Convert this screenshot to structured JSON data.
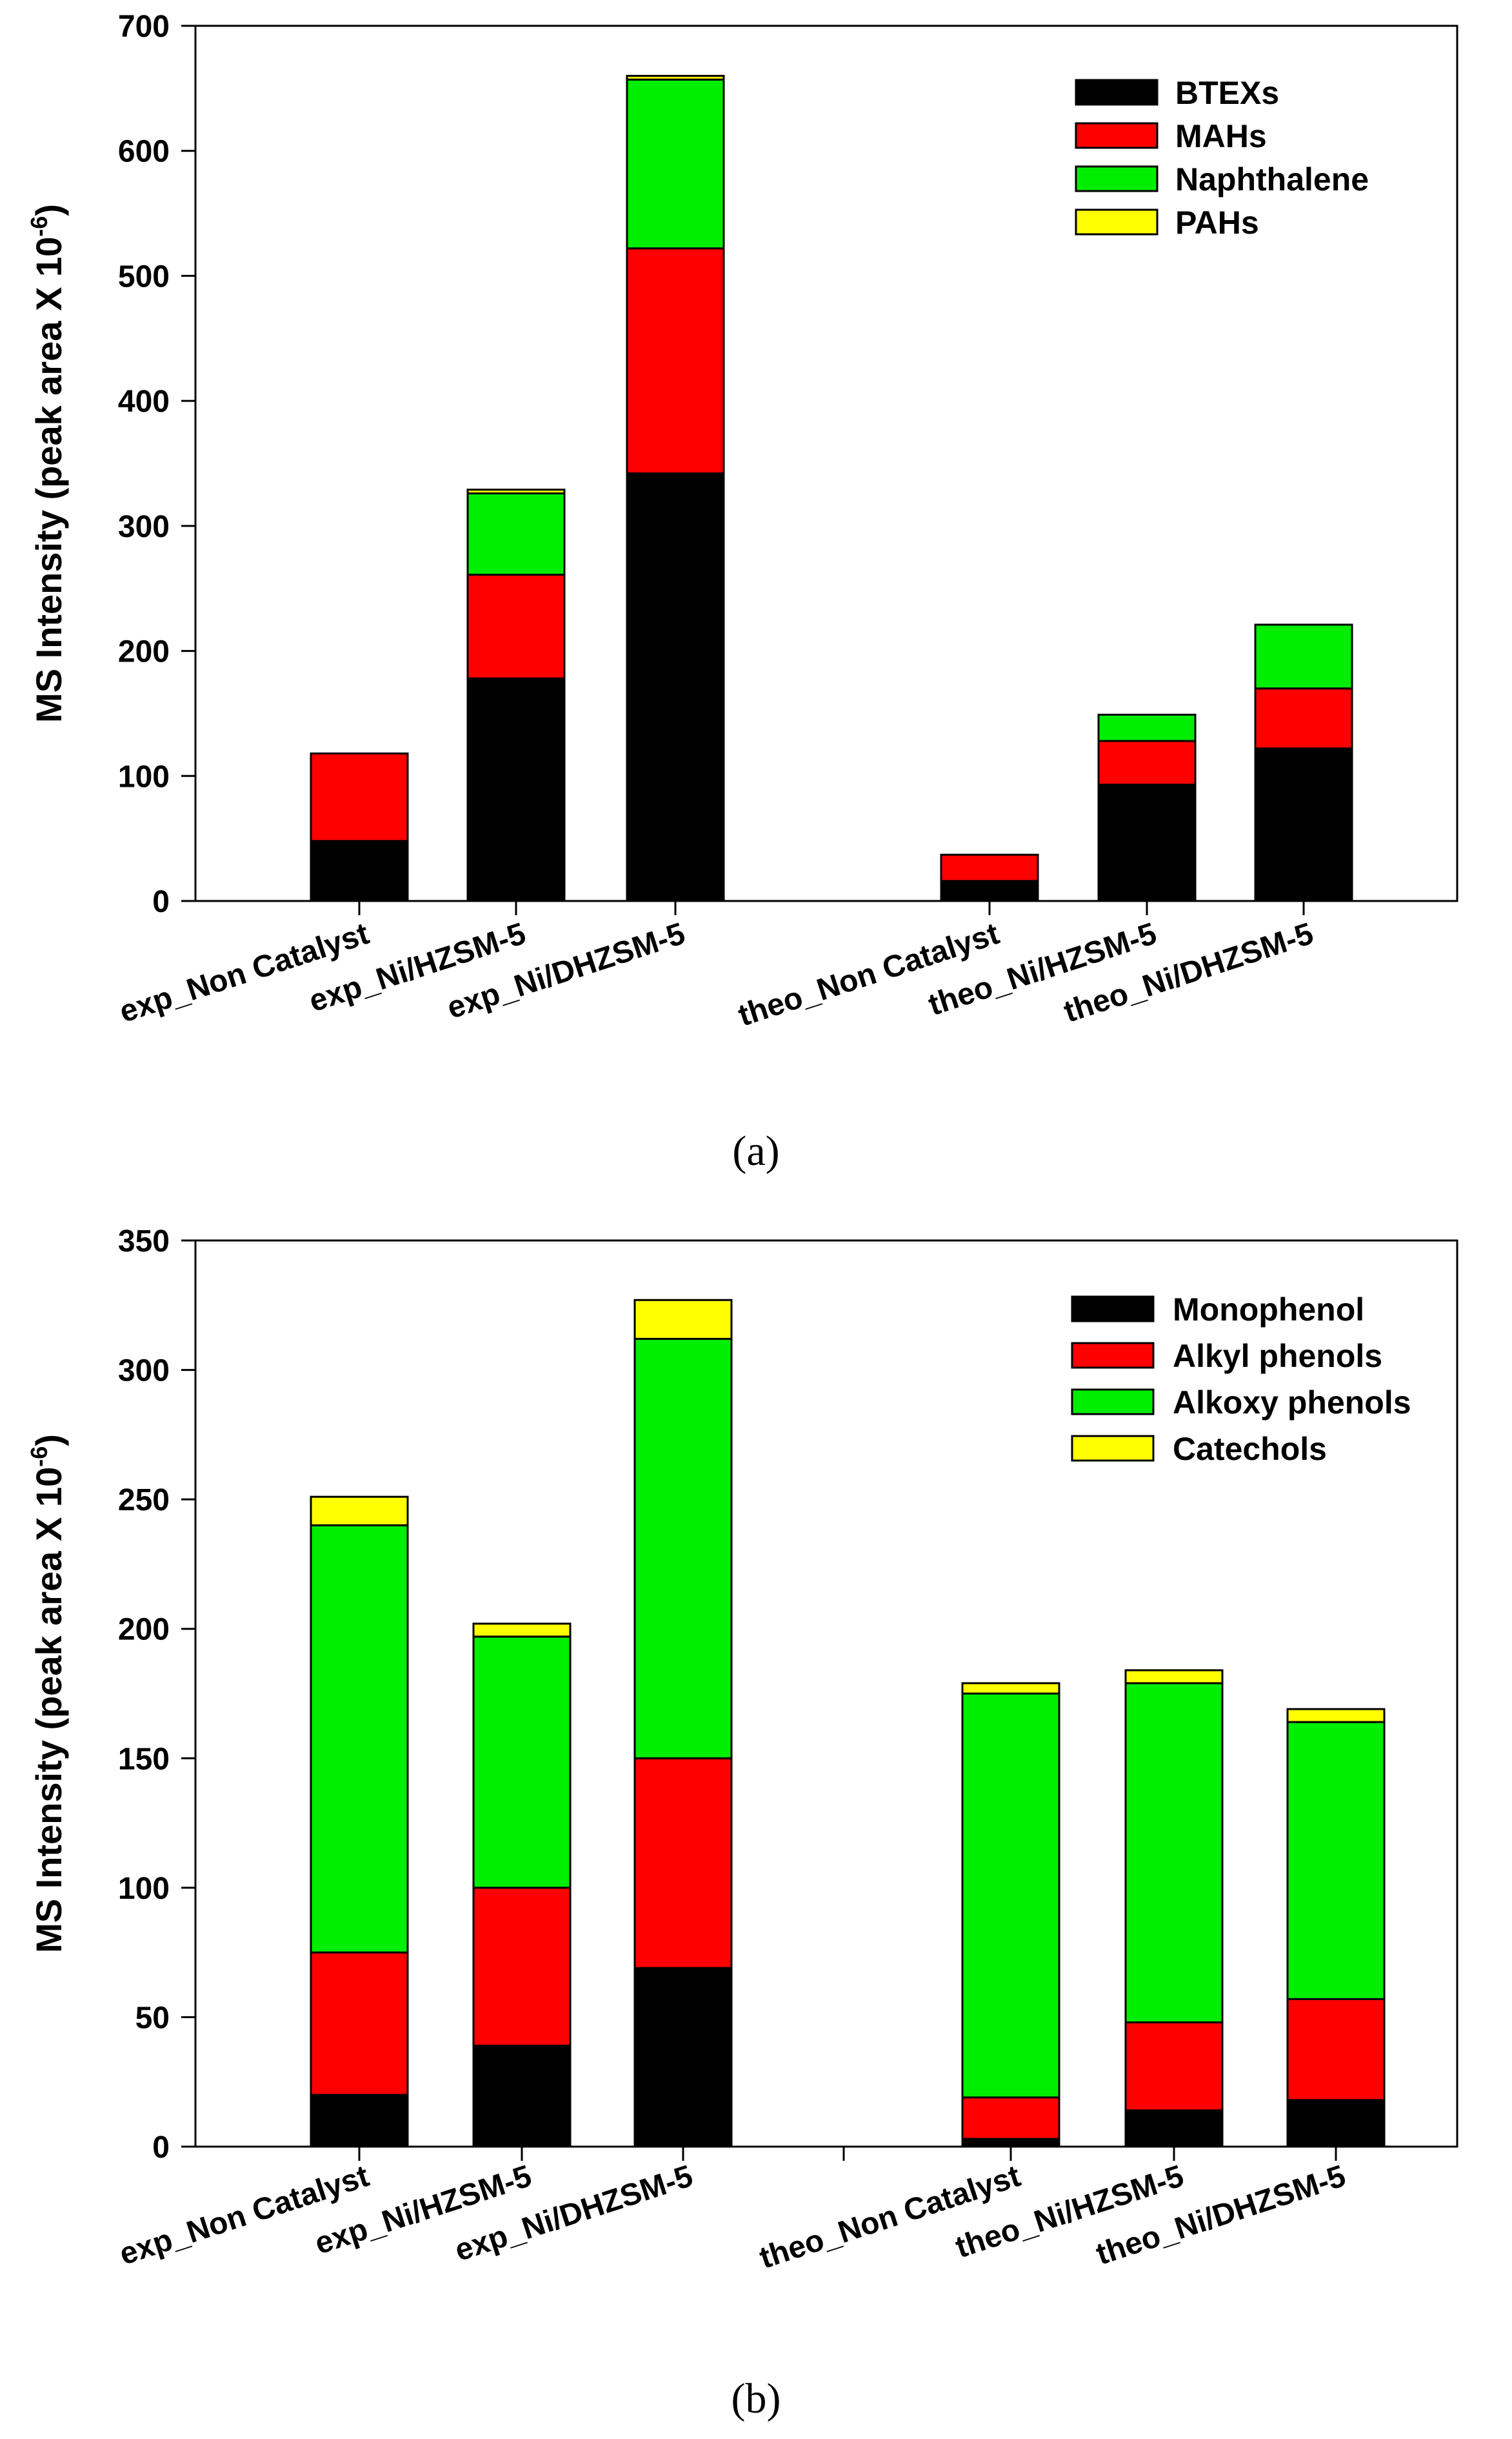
{
  "colors": {
    "black": "#000000",
    "red": "#ff0000",
    "green": "#00ee00",
    "yellow": "#ffff00"
  },
  "chart_data": [
    {
      "type": "bar",
      "stacked": true,
      "panel_label": "(a)",
      "ylabel_main": "MS Intensity (peak area X 10",
      "ylabel_sup": "-6",
      "ylabel_close": ")",
      "ylim": [
        0,
        700
      ],
      "yticks": [
        "0",
        "100",
        "200",
        "300",
        "400",
        "500",
        "600",
        "700"
      ],
      "categories": [
        "exp_Non Catalyst",
        "exp_Ni/HZSM-5",
        "exp_Ni/DHZSM-5",
        "theo_Non Catalyst",
        "theo_Ni/HZSM-5",
        "theo_Ni/DHZSM-5"
      ],
      "legend_position": "top-right",
      "series": [
        {
          "name": "BTEXs",
          "color": "#000000",
          "values": [
            48,
            178,
            342,
            16,
            93,
            122
          ]
        },
        {
          "name": "MAHs",
          "color": "#ff0000",
          "values": [
            70,
            83,
            180,
            21,
            35,
            48
          ]
        },
        {
          "name": "Naphthalene",
          "color": "#00ee00",
          "values": [
            0,
            65,
            135,
            0,
            21,
            51
          ]
        },
        {
          "name": "PAHs",
          "color": "#ffff00",
          "values": [
            0,
            3,
            3,
            0,
            0,
            0
          ]
        }
      ]
    },
    {
      "type": "bar",
      "stacked": true,
      "panel_label": "(b)",
      "ylabel_main": "MS Intensity (peak area X 10",
      "ylabel_sup": "-6",
      "ylabel_close": ")",
      "ylim": [
        0,
        350
      ],
      "yticks": [
        "0",
        "50",
        "100",
        "150",
        "200",
        "250",
        "300",
        "350"
      ],
      "categories": [
        "exp_Non Catalyst",
        "exp_Ni/HZSM-5",
        "exp_Ni/DHZSM-5",
        "theo_Non Catalyst",
        "theo_Ni/HZSM-5",
        "theo_Ni/DHZSM-5"
      ],
      "legend_position": "top-right",
      "series": [
        {
          "name": "Monophenol",
          "color": "#000000",
          "values": [
            20,
            39,
            69,
            3,
            14,
            18
          ]
        },
        {
          "name": "Alkyl phenols",
          "color": "#ff0000",
          "values": [
            55,
            61,
            81,
            16,
            34,
            39
          ]
        },
        {
          "name": "Alkoxy phenols",
          "color": "#00ee00",
          "values": [
            165,
            97,
            162,
            156,
            131,
            107
          ]
        },
        {
          "name": "Catechols",
          "color": "#ffff00",
          "values": [
            11,
            5,
            15,
            4,
            5,
            5
          ]
        }
      ]
    }
  ]
}
